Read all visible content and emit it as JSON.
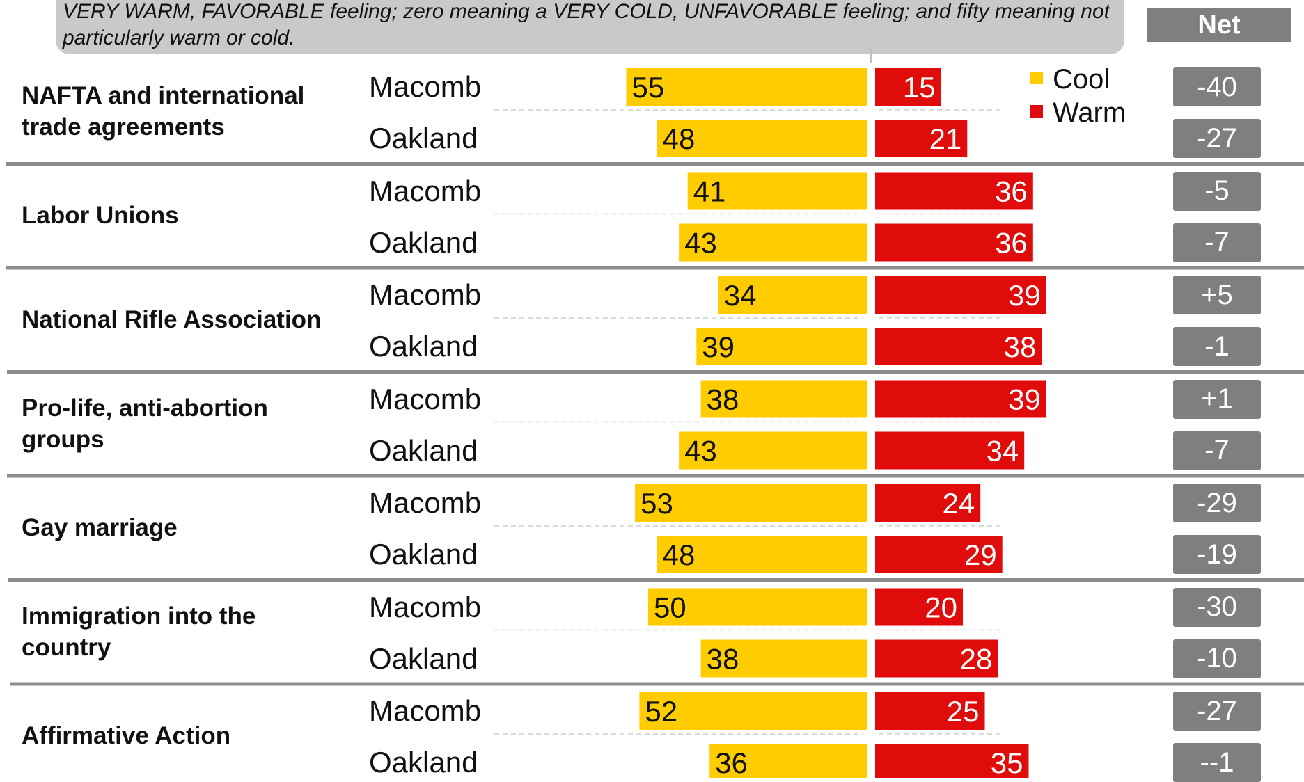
{
  "question_text": "VERY WARM, FAVORABLE feeling; zero meaning a VERY COLD, UNFAVORABLE feeling; and fifty meaning not particularly warm or cold.",
  "net_header": "Net",
  "colors": {
    "cool": "#ffcc00",
    "warm": "#e00b0b",
    "net_box": "#7f7f7f",
    "divider": "#8c8c8c"
  },
  "chart_data": {
    "type": "bar",
    "orientation": "horizontal-diverging",
    "title": "",
    "xlabel": "",
    "ylabel": "",
    "legend": {
      "items": [
        "Cool",
        "Warm"
      ],
      "placement": "top-right"
    },
    "grid": false,
    "groups": [
      {
        "topic": "NAFTA and international trade agreements",
        "rows": [
          {
            "county": "Macomb",
            "cool": 55,
            "warm": 15,
            "net": "-40"
          },
          {
            "county": "Oakland",
            "cool": 48,
            "warm": 21,
            "net": "-27"
          }
        ]
      },
      {
        "topic": "Labor Unions",
        "rows": [
          {
            "county": "Macomb",
            "cool": 41,
            "warm": 36,
            "net": "-5"
          },
          {
            "county": "Oakland",
            "cool": 43,
            "warm": 36,
            "net": "-7"
          }
        ]
      },
      {
        "topic": "National Rifle Association",
        "rows": [
          {
            "county": "Macomb",
            "cool": 34,
            "warm": 39,
            "net": "+5"
          },
          {
            "county": "Oakland",
            "cool": 39,
            "warm": 38,
            "net": "-1"
          }
        ]
      },
      {
        "topic": "Pro-life, anti-abortion groups",
        "rows": [
          {
            "county": "Macomb",
            "cool": 38,
            "warm": 39,
            "net": "+1"
          },
          {
            "county": "Oakland",
            "cool": 43,
            "warm": 34,
            "net": "-7"
          }
        ]
      },
      {
        "topic": "Gay marriage",
        "rows": [
          {
            "county": "Macomb",
            "cool": 53,
            "warm": 24,
            "net": "-29"
          },
          {
            "county": "Oakland",
            "cool": 48,
            "warm": 29,
            "net": "-19"
          }
        ]
      },
      {
        "topic": "Immigration into the country",
        "rows": [
          {
            "county": "Macomb",
            "cool": 50,
            "warm": 20,
            "net": "-30"
          },
          {
            "county": "Oakland",
            "cool": 38,
            "warm": 28,
            "net": "-10"
          }
        ]
      },
      {
        "topic": "Affirmative Action",
        "rows": [
          {
            "county": "Macomb",
            "cool": 52,
            "warm": 25,
            "net": "-27"
          },
          {
            "county": "Oakland",
            "cool": 36,
            "warm": 35,
            "net": "--1"
          }
        ]
      }
    ]
  }
}
